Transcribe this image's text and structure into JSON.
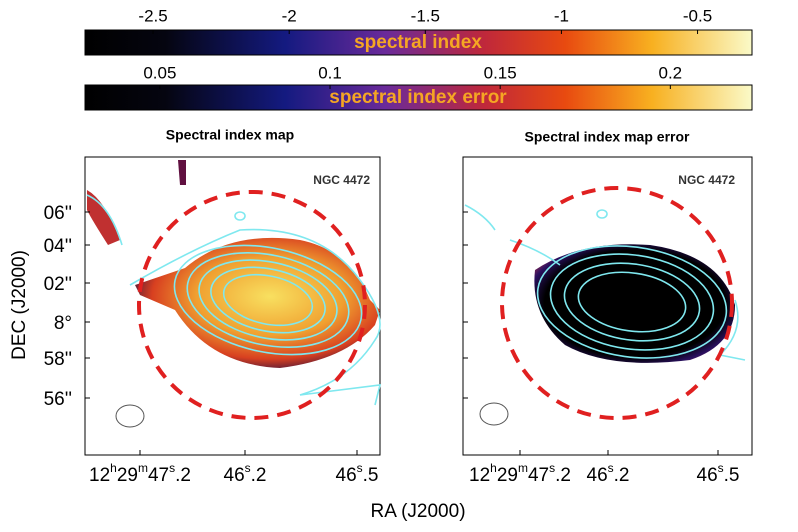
{
  "colorbars": [
    {
      "label": "spectral index",
      "lim": [
        -2.75,
        -0.3
      ],
      "ticks": [
        -2.5,
        -2,
        -1.5,
        -1,
        -0.5
      ]
    },
    {
      "label": "spectral index error",
      "lim": [
        0.028,
        0.224
      ],
      "ticks": [
        0.05,
        0.1,
        0.15,
        0.2
      ]
    }
  ],
  "panels": [
    {
      "title": "Spectral index map",
      "source": "NGC 4472"
    },
    {
      "title": "Spectral index map error",
      "source": "NGC 4472"
    }
  ],
  "dec_ticks": [
    "06''",
    "04''",
    "02''",
    "8°",
    "58''",
    "56''"
  ],
  "ra_ticks": [
    [
      "12",
      "h",
      "29",
      "m",
      "47",
      "s",
      ".2"
    ],
    [
      "46",
      "s",
      ".2"
    ],
    [
      "46",
      "s",
      ".5"
    ]
  ],
  "x_label": "RA (J2000)",
  "y_label": "DEC (J2000)"
}
